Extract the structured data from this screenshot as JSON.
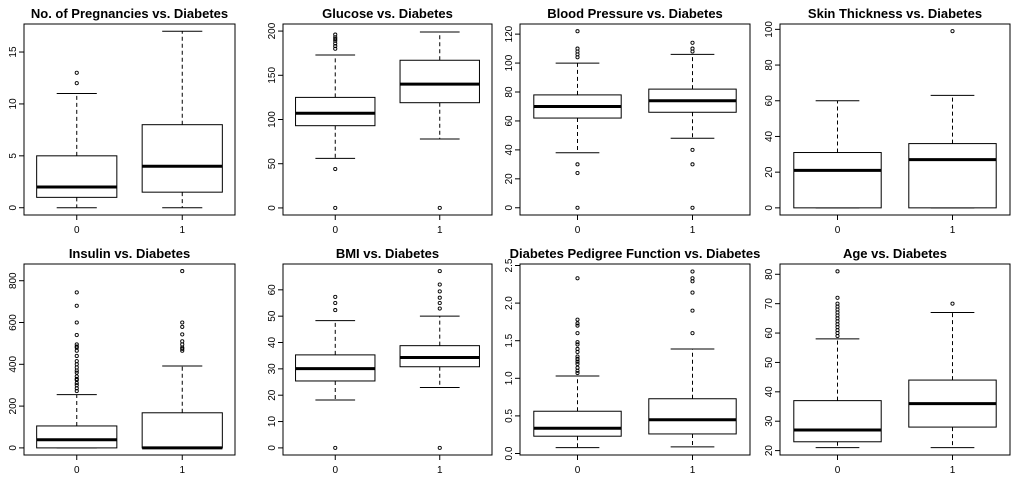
{
  "chart_data": [
    {
      "type": "boxplot",
      "title": "No. of Pregnancies vs. Diabetes",
      "categories": [
        "0",
        "1"
      ],
      "ylim": [
        -0.7,
        17.7
      ],
      "yticks": [
        0,
        5,
        10,
        15
      ],
      "boxes": [
        {
          "category": "0",
          "whisker_low": 0,
          "q1": 1,
          "median": 2,
          "q3": 5,
          "whisker_high": 11,
          "outliers": [
            12,
            13
          ]
        },
        {
          "category": "1",
          "whisker_low": 0,
          "q1": 1.5,
          "median": 4,
          "q3": 8,
          "whisker_high": 17,
          "outliers": []
        }
      ]
    },
    {
      "type": "boxplot",
      "title": "Glucose vs. Diabetes",
      "categories": [
        "0",
        "1"
      ],
      "ylim": [
        -8,
        208
      ],
      "yticks": [
        0,
        50,
        100,
        150,
        200
      ],
      "boxes": [
        {
          "category": "0",
          "whisker_low": 56,
          "q1": 93,
          "median": 107,
          "q3": 125,
          "whisker_high": 173,
          "outliers": [
            0,
            44,
            180,
            183,
            186,
            189,
            191,
            193,
            196
          ]
        },
        {
          "category": "1",
          "whisker_low": 78,
          "q1": 119,
          "median": 140,
          "q3": 167,
          "whisker_high": 199,
          "outliers": [
            0
          ]
        }
      ]
    },
    {
      "type": "boxplot",
      "title": "Blood Pressure vs. Diabetes",
      "categories": [
        "0",
        "1"
      ],
      "ylim": [
        -5,
        127
      ],
      "yticks": [
        0,
        20,
        40,
        60,
        80,
        100,
        120
      ],
      "boxes": [
        {
          "category": "0",
          "whisker_low": 38,
          "q1": 62,
          "median": 70,
          "q3": 78,
          "whisker_high": 100,
          "outliers": [
            0,
            24,
            30,
            104,
            106,
            108,
            110,
            122
          ]
        },
        {
          "category": "1",
          "whisker_low": 48,
          "q1": 66,
          "median": 74,
          "q3": 82,
          "whisker_high": 106,
          "outliers": [
            0,
            30,
            40,
            108,
            110,
            114
          ]
        }
      ]
    },
    {
      "type": "boxplot",
      "title": "Skin Thickness vs. Diabetes",
      "categories": [
        "0",
        "1"
      ],
      "ylim": [
        -4,
        103
      ],
      "yticks": [
        0,
        20,
        40,
        60,
        80,
        100
      ],
      "boxes": [
        {
          "category": "0",
          "whisker_low": 0,
          "q1": 0,
          "median": 21,
          "q3": 31,
          "whisker_high": 60,
          "outliers": []
        },
        {
          "category": "1",
          "whisker_low": 0,
          "q1": 0,
          "median": 27,
          "q3": 36,
          "whisker_high": 63,
          "outliers": [
            99
          ]
        }
      ]
    },
    {
      "type": "boxplot",
      "title": "Insulin vs. Diabetes",
      "categories": [
        "0",
        "1"
      ],
      "ylim": [
        -34,
        880
      ],
      "yticks": [
        0,
        200,
        400,
        600,
        800
      ],
      "boxes": [
        {
          "category": "0",
          "whisker_low": 0,
          "q1": 0,
          "median": 39,
          "q3": 105,
          "whisker_high": 255,
          "outliers": [
            272,
            285,
            300,
            310,
            325,
            330,
            342,
            360,
            370,
            385,
            400,
            415,
            440,
            465,
            480,
            485,
            495,
            540,
            600,
            680,
            744
          ]
        },
        {
          "category": "1",
          "whisker_low": 0,
          "q1": 0,
          "median": 0,
          "q3": 168,
          "whisker_high": 392,
          "outliers": [
            465,
            474,
            480,
            495,
            510,
            543,
            579,
            600,
            846
          ]
        }
      ]
    },
    {
      "type": "boxplot",
      "title": "BMI vs. Diabetes",
      "categories": [
        "0",
        "1"
      ],
      "ylim": [
        -2.7,
        69.8
      ],
      "yticks": [
        0,
        10,
        20,
        30,
        40,
        50,
        60
      ],
      "boxes": [
        {
          "category": "0",
          "whisker_low": 18.2,
          "q1": 25.4,
          "median": 30.1,
          "q3": 35.3,
          "whisker_high": 48.3,
          "outliers": [
            0,
            52.3,
            55,
            57.3
          ]
        },
        {
          "category": "1",
          "whisker_low": 22.9,
          "q1": 30.8,
          "median": 34.3,
          "q3": 38.8,
          "whisker_high": 50,
          "outliers": [
            0,
            52.9,
            55,
            57,
            59.4,
            62,
            67.1
          ]
        }
      ]
    },
    {
      "type": "boxplot",
      "title": "Diabetes Pedigree Function vs. Diabetes",
      "categories": [
        "0",
        "1"
      ],
      "ylim": [
        -0.02,
        2.52
      ],
      "yticks": [
        0.0,
        0.5,
        1.0,
        1.5,
        2.0,
        2.5
      ],
      "ytick_labels": [
        "0.0",
        "0.5",
        "1.0",
        "1.5",
        "2.0",
        "2.5"
      ],
      "boxes": [
        {
          "category": "0",
          "whisker_low": 0.078,
          "q1": 0.23,
          "median": 0.336,
          "q3": 0.562,
          "whisker_high": 1.03,
          "outliers": [
            1.07,
            1.1,
            1.14,
            1.19,
            1.22,
            1.25,
            1.26,
            1.29,
            1.35,
            1.39,
            1.45,
            1.48,
            1.6,
            1.7,
            1.73,
            1.78,
            2.33
          ]
        },
        {
          "category": "1",
          "whisker_low": 0.088,
          "q1": 0.26,
          "median": 0.449,
          "q3": 0.728,
          "whisker_high": 1.39,
          "outliers": [
            1.6,
            1.9,
            2.14,
            2.29,
            2.33,
            2.42
          ]
        }
      ]
    },
    {
      "type": "boxplot",
      "title": "Age vs. Diabetes",
      "categories": [
        "0",
        "1"
      ],
      "ylim": [
        18.5,
        83.5
      ],
      "yticks": [
        20,
        30,
        40,
        50,
        60,
        70,
        80
      ],
      "boxes": [
        {
          "category": "0",
          "whisker_low": 21,
          "q1": 23,
          "median": 27,
          "q3": 37,
          "whisker_high": 58,
          "outliers": [
            59,
            60,
            61,
            62,
            63,
            64,
            65,
            66,
            67,
            68,
            69,
            70,
            72,
            81
          ]
        },
        {
          "category": "1",
          "whisker_low": 21,
          "q1": 28,
          "median": 36,
          "q3": 44,
          "whisker_high": 67,
          "outliers": [
            70
          ]
        }
      ]
    }
  ]
}
